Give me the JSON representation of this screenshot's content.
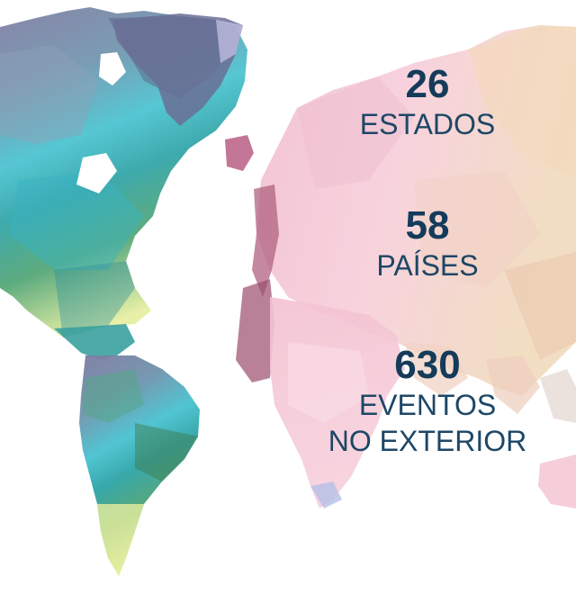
{
  "stats": [
    {
      "number": "26",
      "label": "ESTADOS"
    },
    {
      "number": "58",
      "label": "PAÍSES"
    },
    {
      "number": "630",
      "label": "EVENTOS",
      "label2": "NO EXTERIOR"
    }
  ],
  "colors": {
    "text": "#143b5a",
    "americas_north": "#6e7aa0",
    "americas_mid": "#3cb9c7",
    "americas_south": "#4f9e6a",
    "americas_tip": "#dfe79a",
    "eurasia_pink": "#f3c3d3",
    "eurasia_peach": "#f1d6b6",
    "accent_mauve": "#b2607f"
  }
}
